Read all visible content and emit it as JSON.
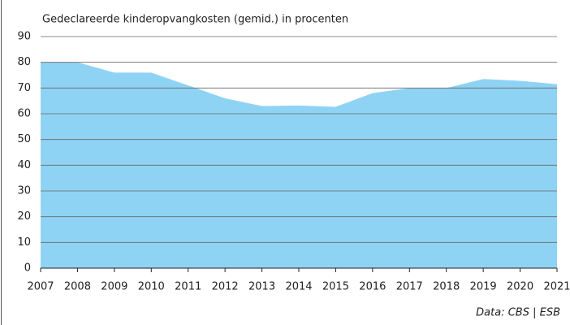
{
  "chart_data": {
    "type": "area",
    "subtitle": "Gedeclareerde kinderopvangkosten (gemid.) in procenten",
    "source": "Data: CBS | ESB",
    "x": [
      2007,
      2008,
      2009,
      2010,
      2011,
      2012,
      2013,
      2014,
      2015,
      2016,
      2017,
      2018,
      2019,
      2020,
      2021
    ],
    "values": [
      80,
      80,
      76,
      76,
      71,
      66,
      63,
      63.2,
      62.7,
      68,
      70,
      70,
      73.5,
      72.8,
      71.5
    ],
    "color": "#8fd3f4",
    "xlim": [
      2007,
      2021
    ],
    "xticks": [
      2007,
      2008,
      2009,
      2010,
      2011,
      2012,
      2013,
      2014,
      2015,
      2016,
      2017,
      2018,
      2019,
      2020,
      2021
    ],
    "ylim": [
      0,
      90
    ],
    "yticks": [
      0,
      10,
      20,
      30,
      40,
      50,
      60,
      70,
      80,
      90
    ],
    "grid": true
  }
}
